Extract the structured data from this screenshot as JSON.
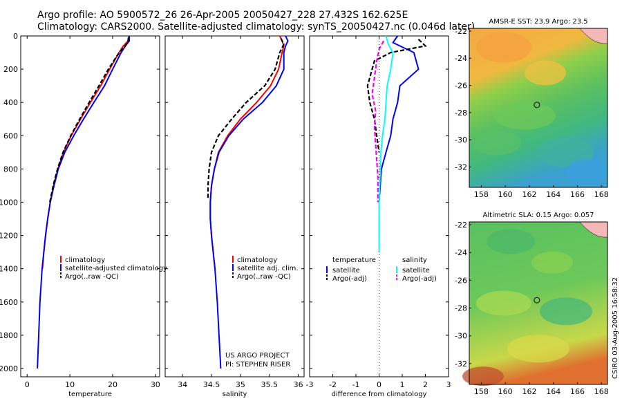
{
  "title_line1": "Argo profile: AO 5900572_26 26-Apr-2005 20050427_228 27.432S 162.625E",
  "title_line2": "Climatology: CARS2000. Satellite-adjusted climatology: synTS_20050427.nc (0.046d later)",
  "footer_project": "US ARGO PROJECT",
  "footer_pi": "PI: STEPHEN RISER",
  "side_credit": "CSIRO 03-Aug-2005 16:58:32",
  "colors": {
    "climatology": "#ff0000",
    "satellite": "#0000ff",
    "argo": "#000000",
    "sat_salinity": "#00ffff",
    "argo_salinity": "#ff00ff"
  },
  "chart_data": [
    {
      "type": "line",
      "id": "temperature",
      "xlabel": "temperature",
      "ylabel": "depth",
      "xlim": [
        -1.5,
        31
      ],
      "ylim": [
        2050,
        0
      ],
      "xticks": [
        0,
        10,
        20,
        30
      ],
      "yticks": [
        0,
        200,
        400,
        600,
        800,
        1000,
        1200,
        1400,
        1600,
        1800,
        2000
      ],
      "legend": [
        "climatology",
        "satellite-adjusted climatology",
        "Argo(..raw -QC)"
      ],
      "legend_placement": "middle-right",
      "series": [
        {
          "name": "climatology",
          "color_key": "climatology",
          "dashed": false,
          "depth": [
            0,
            30,
            60,
            100,
            200,
            300,
            400,
            500,
            600,
            700,
            800,
            900,
            1000,
            1100,
            1200,
            1300,
            1400
          ],
          "values": [
            23.8,
            23.6,
            22.5,
            21.5,
            19.3,
            17.2,
            14.8,
            12.5,
            10.3,
            8.5,
            7.2,
            6.2,
            5.4,
            4.8,
            4.3,
            3.9,
            3.6
          ]
        },
        {
          "name": "satellite-adjusted climatology",
          "color_key": "satellite",
          "dashed": false,
          "depth": [
            0,
            30,
            60,
            100,
            200,
            300,
            400,
            500,
            600,
            700,
            800,
            900,
            1000,
            1100,
            1200,
            1300,
            1400,
            1600,
            1800,
            2000
          ],
          "values": [
            23.9,
            23.9,
            23.0,
            22.0,
            20.0,
            18.1,
            15.6,
            13.2,
            10.9,
            8.8,
            7.3,
            6.3,
            5.4,
            4.8,
            4.3,
            3.9,
            3.5,
            3.0,
            2.7,
            2.4
          ]
        },
        {
          "name": "Argo(..raw -QC)",
          "color_key": "argo",
          "dashed": true,
          "depth": [
            10,
            40,
            80,
            120,
            200,
            300,
            400,
            500,
            600,
            700,
            800,
            900,
            1000
          ],
          "values": [
            23.7,
            23.6,
            22.2,
            21.0,
            19.0,
            16.8,
            14.5,
            12.3,
            10.2,
            8.4,
            7.1,
            6.1,
            5.3
          ]
        }
      ]
    },
    {
      "type": "line",
      "id": "salinity",
      "xlabel": "salinity",
      "ylabel": "depth",
      "xlim": [
        33.7,
        36.1
      ],
      "ylim": [
        2050,
        0
      ],
      "xticks": [
        34,
        34.5,
        35,
        35.5,
        36
      ],
      "yticks": [
        0,
        200,
        400,
        600,
        800,
        1000,
        1200,
        1400,
        1600,
        1800,
        2000
      ],
      "legend": [
        "climatology",
        "satellite adj. clim.",
        "Argo(..raw -QC)"
      ],
      "legend_placement": "middle-right",
      "series": [
        {
          "name": "climatology",
          "color_key": "climatology",
          "dashed": false,
          "depth": [
            0,
            30,
            60,
            100,
            200,
            300,
            400,
            500,
            600,
            700,
            800,
            900,
            1000,
            1100,
            1200,
            1300,
            1400
          ],
          "values": [
            35.68,
            35.72,
            35.75,
            35.72,
            35.66,
            35.52,
            35.28,
            35.0,
            34.78,
            34.62,
            34.55,
            34.5,
            34.48,
            34.48,
            34.5,
            34.53,
            34.56
          ]
        },
        {
          "name": "satellite adj. clim.",
          "color_key": "satellite",
          "dashed": false,
          "depth": [
            0,
            30,
            60,
            100,
            200,
            300,
            400,
            500,
            600,
            700,
            800,
            900,
            1000,
            1100,
            1200,
            1300,
            1400,
            1600,
            1800,
            2000
          ],
          "values": [
            35.78,
            35.82,
            35.78,
            35.75,
            35.75,
            35.62,
            35.38,
            35.05,
            34.8,
            34.63,
            34.55,
            34.5,
            34.48,
            34.48,
            34.5,
            34.53,
            34.56,
            34.6,
            34.63,
            34.66
          ]
        },
        {
          "name": "Argo(..raw -QC)",
          "color_key": "argo",
          "dashed": true,
          "depth": [
            15,
            50,
            100,
            200,
            300,
            400,
            500,
            600,
            700,
            800,
            900,
            980
          ],
          "values": [
            35.7,
            35.75,
            35.68,
            35.6,
            35.42,
            35.1,
            34.85,
            34.62,
            34.5,
            34.46,
            34.44,
            34.44
          ]
        }
      ]
    },
    {
      "type": "line",
      "id": "difference",
      "xlabel": "difference from climatology",
      "ylabel": "depth",
      "xlim": [
        -3,
        3
      ],
      "ylim": [
        2050,
        0
      ],
      "xticks": [
        -3,
        -2,
        -1,
        0,
        1,
        2,
        3
      ],
      "yticks": [
        0,
        200,
        400,
        600,
        800,
        1000,
        1200,
        1400,
        1600,
        1800,
        2000
      ],
      "legend_left_header": "temperature",
      "legend_right_header": "salinity",
      "legend": [
        "satellite",
        "Argo(-adj)",
        "satellite",
        "Argo(-adj)"
      ],
      "legend_placement": "middle",
      "series": [
        {
          "name": "temperature satellite",
          "color_key": "satellite",
          "dashed": false,
          "depth": [
            0,
            40,
            100,
            200,
            300,
            400,
            500,
            600,
            700,
            800,
            900,
            1000,
            1100,
            1200,
            1300
          ],
          "values": [
            0.8,
            0.6,
            1.5,
            1.7,
            0.9,
            0.8,
            0.6,
            0.5,
            0.3,
            0.1,
            0.05,
            0.0,
            0.0,
            0.0,
            0.0
          ]
        },
        {
          "name": "temperature Argo(-adj)",
          "color_key": "argo",
          "dashed": true,
          "depth": [
            20,
            60,
            100,
            150,
            200,
            300,
            400,
            500,
            600,
            700
          ],
          "values": [
            1.7,
            2.0,
            0.5,
            -0.2,
            -0.3,
            -0.5,
            -0.4,
            -0.2,
            -0.1,
            0.0
          ]
        },
        {
          "name": "salinity satellite",
          "color_key": "sat_salinity",
          "dashed": false,
          "depth": [
            0,
            50,
            100,
            200,
            300,
            400,
            500,
            600,
            700,
            800,
            1000,
            1200,
            1300
          ],
          "values": [
            0.3,
            0.4,
            0.6,
            0.5,
            0.35,
            0.3,
            0.25,
            0.15,
            0.08,
            0.05,
            0.0,
            0.0,
            0.0
          ]
        },
        {
          "name": "salinity Argo(-adj)",
          "color_key": "argo_salinity",
          "dashed": true,
          "depth": [
            30,
            80,
            150,
            250,
            350,
            450,
            550,
            650,
            750,
            850,
            950,
            1000
          ],
          "values": [
            0.2,
            0.0,
            -0.1,
            -0.2,
            -0.3,
            -0.15,
            -0.2,
            -0.15,
            -0.1,
            -0.05,
            -0.05,
            -0.05
          ]
        }
      ]
    },
    {
      "type": "heatmap",
      "id": "sst_map",
      "title": "AMSR-E SST: 23.9 Argo: 23.5",
      "xlim": [
        157,
        168.5
      ],
      "ylim": [
        -33.5,
        -21.8
      ],
      "xticks": [
        158,
        160,
        162,
        164,
        166,
        168
      ],
      "yticks": [
        -22,
        -24,
        -26,
        -28,
        -30,
        -32
      ],
      "marker": {
        "lon": 162.625,
        "lat": -27.432
      }
    },
    {
      "type": "heatmap",
      "id": "sla_map",
      "title": "Altimetric SLA: 0.15 Argo: 0.057",
      "xlim": [
        157,
        168.5
      ],
      "ylim": [
        -33.5,
        -21.8
      ],
      "xticks": [
        158,
        160,
        162,
        164,
        166,
        168
      ],
      "yticks": [
        -22,
        -24,
        -26,
        -28,
        -30,
        -32
      ],
      "marker": {
        "lon": 162.625,
        "lat": -27.432
      }
    }
  ]
}
